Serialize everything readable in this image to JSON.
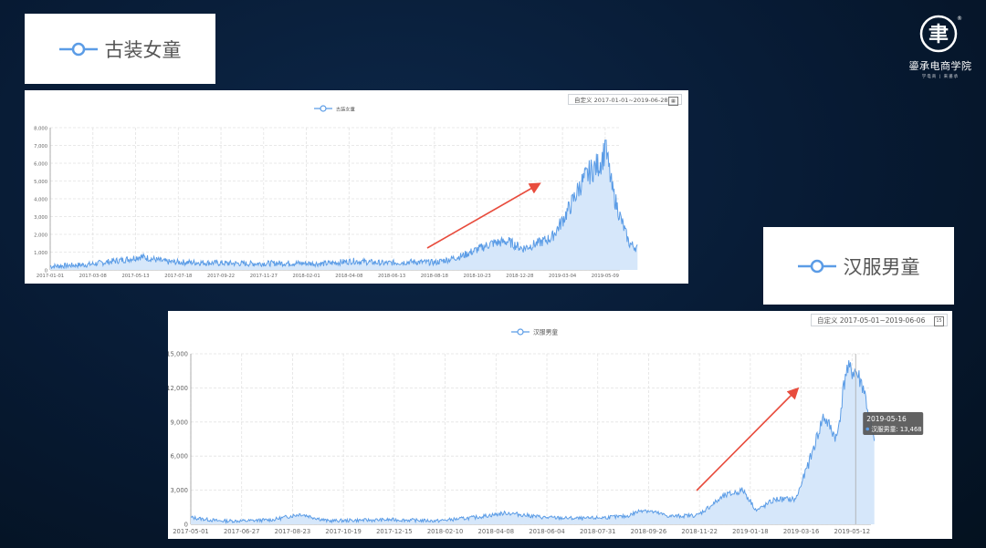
{
  "brand": {
    "name": "鎏承电商学院",
    "sub": "学电商 | 来鎏承",
    "logo_char": "聿"
  },
  "colors": {
    "line": "#5b9ce6",
    "area": "#d6e7fa",
    "arrow": "#e84c3d",
    "grid": "#e2e2e2",
    "axis": "#666666",
    "tooltip_bg": "#555555"
  },
  "chart_data": [
    {
      "type": "area",
      "title": "古装女童",
      "legend": "古装女童",
      "date_range": "自定义 2017-01-01~2019-06-28",
      "ylim": [
        0,
        8000
      ],
      "yticks": [
        "0",
        "1,000",
        "2,000",
        "3,000",
        "4,000",
        "5,000",
        "6,000",
        "7,000",
        "8,000"
      ],
      "xticks": [
        "2017-01-01",
        "2017-03-08",
        "2017-05-13",
        "2017-07-18",
        "2017-09-22",
        "2017-11-27",
        "2018-02-01",
        "2018-04-08",
        "2018-06-13",
        "2018-08-18",
        "2018-10-23",
        "2018-12-28",
        "2019-03-04",
        "2019-05-09"
      ],
      "x": [
        "2017-01-01",
        "2017-03-01",
        "2017-05-01",
        "2017-05-20",
        "2017-07-01",
        "2017-09-01",
        "2017-11-01",
        "2018-01-01",
        "2018-03-01",
        "2018-04-15",
        "2018-06-01",
        "2018-07-15",
        "2018-08-20",
        "2018-09-10",
        "2018-10-01",
        "2018-10-20",
        "2018-11-15",
        "2018-12-10",
        "2019-01-01",
        "2019-01-25",
        "2019-02-15",
        "2019-03-01",
        "2019-03-15",
        "2019-04-01",
        "2019-04-15",
        "2019-05-01",
        "2019-05-10",
        "2019-05-20",
        "2019-06-01",
        "2019-06-15",
        "2019-06-28"
      ],
      "values": [
        200,
        300,
        600,
        750,
        450,
        400,
        350,
        380,
        350,
        500,
        380,
        450,
        420,
        600,
        800,
        1100,
        1500,
        1600,
        1200,
        1500,
        1800,
        2600,
        3500,
        4800,
        5500,
        6000,
        6800,
        4500,
        3000,
        1500,
        1200
      ],
      "peak": {
        "date": "2019-05-10",
        "value": 7300
      }
    },
    {
      "type": "area",
      "title": "汉服男童",
      "legend": "汉服男童",
      "date_range": "自定义 2017-05-01~2019-06-06",
      "ylim": [
        0,
        15000
      ],
      "yticks": [
        "0",
        "3,000",
        "6,000",
        "9,000",
        "12,000",
        "15,000"
      ],
      "xticks": [
        "2017-05-01",
        "2017-06-27",
        "2017-08-23",
        "2017-10-19",
        "2017-12-15",
        "2018-02-10",
        "2018-04-08",
        "2018-06-04",
        "2018-07-31",
        "2018-09-26",
        "2018-11-22",
        "2019-01-18",
        "2019-03-16",
        "2019-05-12"
      ],
      "x": [
        "2017-05-01",
        "2017-06-01",
        "2017-07-01",
        "2017-08-01",
        "2017-09-01",
        "2017-10-01",
        "2017-11-01",
        "2017-12-15",
        "2018-02-01",
        "2018-03-15",
        "2018-04-20",
        "2018-06-01",
        "2018-07-15",
        "2018-09-01",
        "2018-09-20",
        "2018-10-20",
        "2018-11-20",
        "2018-12-20",
        "2019-01-10",
        "2019-01-25",
        "2019-02-15",
        "2019-03-10",
        "2019-03-25",
        "2019-04-10",
        "2019-04-25",
        "2019-05-05",
        "2019-05-16",
        "2019-05-25",
        "2019-06-06"
      ],
      "values": [
        600,
        300,
        300,
        400,
        900,
        300,
        350,
        400,
        300,
        600,
        1000,
        600,
        500,
        700,
        1300,
        700,
        800,
        2500,
        3000,
        1200,
        2200,
        2200,
        5500,
        9500,
        7500,
        13500,
        13468,
        12000,
        7000
      ],
      "tooltip": {
        "date": "2019-05-16",
        "series": "汉服男童",
        "value": "13,468"
      }
    }
  ]
}
